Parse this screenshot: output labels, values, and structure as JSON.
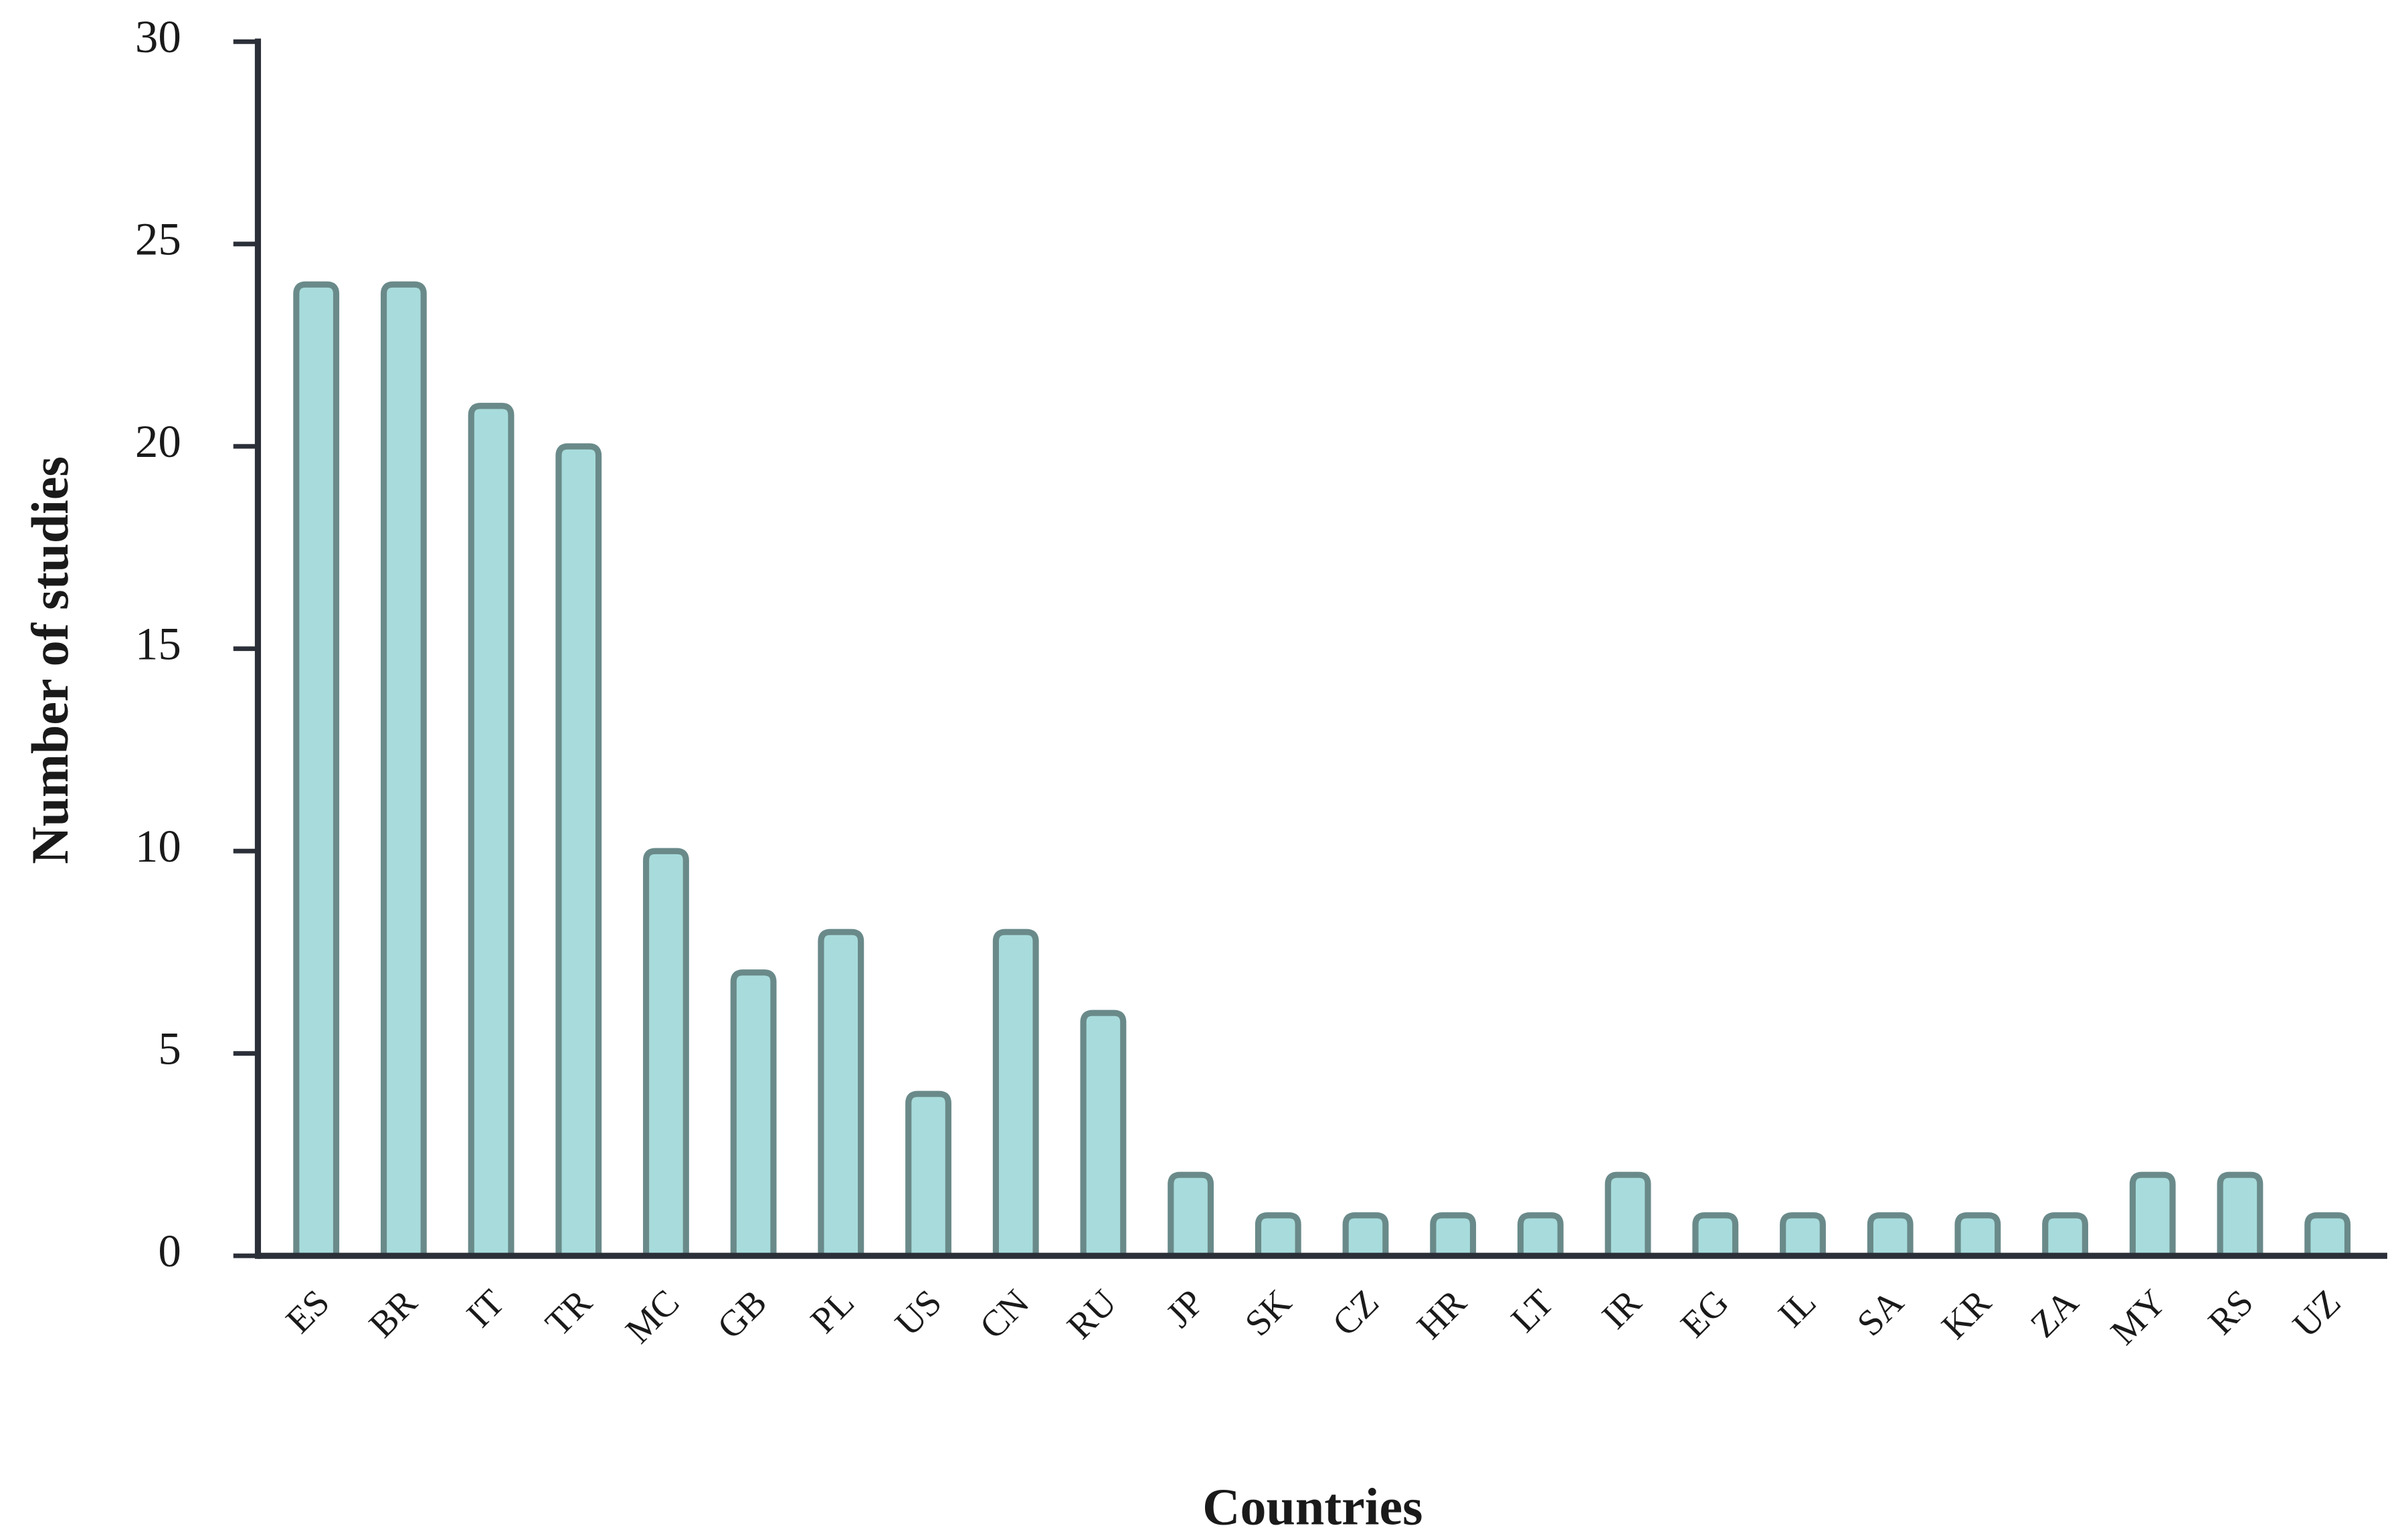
{
  "chart_data": {
    "type": "bar",
    "x_label": "Countries",
    "y_label": "Number of studies",
    "categories": [
      "ES",
      "BR",
      "IT",
      "TR",
      "MC",
      "GB",
      "PL",
      "US",
      "CN",
      "RU",
      "JP",
      "SK",
      "CZ",
      "HR",
      "LT",
      "IR",
      "EG",
      "IL",
      "SA",
      "KR",
      "ZA",
      "MY",
      "RS",
      "UZ"
    ],
    "values": [
      24,
      24,
      21,
      20,
      10,
      7,
      8,
      4,
      8,
      6,
      2,
      1,
      1,
      1,
      1,
      2,
      1,
      1,
      1,
      1,
      1,
      2,
      2,
      1
    ],
    "color": "#a8dcdc",
    "edge_color": "#6a8a8a",
    "ylim": [
      0,
      30
    ],
    "yticks": [
      0,
      5,
      10,
      15,
      20,
      25,
      30
    ],
    "grid": false
  }
}
